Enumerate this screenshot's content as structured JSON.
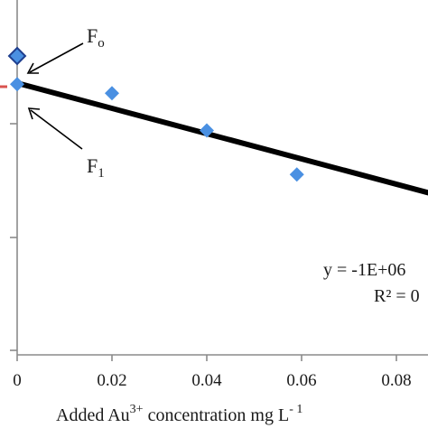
{
  "chart_data": {
    "type": "scatter",
    "xlabel": {
      "prefix": "Added Au",
      "sup": "3+",
      "middle": " concentration mg L",
      "sup2": "- 1"
    },
    "x_ticks": [
      "0",
      "0.02",
      "0.04",
      "0.06",
      "0.08"
    ],
    "xlim": [
      0,
      0.1
    ],
    "points": [
      {
        "x": 0,
        "y": 0.86
      },
      {
        "x": 0,
        "y": 0.835
      },
      {
        "x": 0.02,
        "y": 0.827
      },
      {
        "x": 0.04,
        "y": 0.794
      },
      {
        "x": 0.059,
        "y": 0.755
      }
    ],
    "trendline": {
      "x": [
        0,
        0.1
      ],
      "y": [
        0.836,
        0.724
      ]
    },
    "annotations": {
      "f0": {
        "base": "F",
        "sub": "o"
      },
      "f1": {
        "base": "F",
        "sub": "1"
      }
    },
    "equation": "y = -1E+06",
    "r2": "R² = 0",
    "colors": {
      "points": "#4a90e2",
      "trendline": "#000000",
      "marker_edge": "#1f3f8f",
      "dash": "#d9534f"
    }
  }
}
